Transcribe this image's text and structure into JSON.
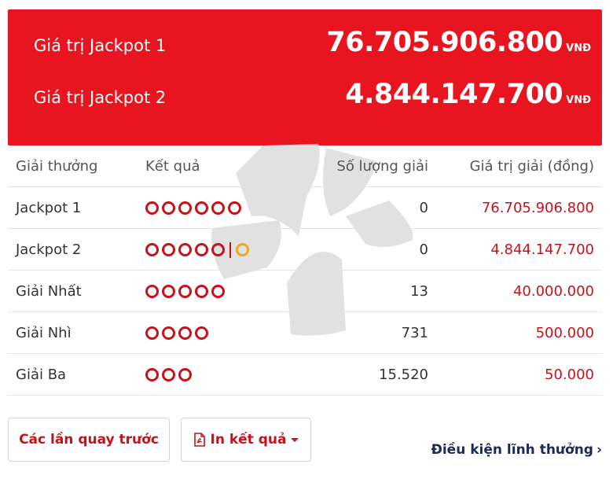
{
  "jackpots": [
    {
      "label": "Giá trị Jackpot 1",
      "amount": "76.705.906.800",
      "unit": "VNĐ"
    },
    {
      "label": "Giá trị Jackpot 2",
      "amount": "4.844.147.700",
      "unit": "VNĐ"
    }
  ],
  "table": {
    "headers": [
      "Giải thưởng",
      "Kết quả",
      "Số lượng giải",
      "Giá trị giải (đồng)"
    ],
    "rows": [
      {
        "name": "Jackpot 1",
        "balls": 6,
        "special_ball": false,
        "count": "0",
        "value": "76.705.906.800"
      },
      {
        "name": "Jackpot 2",
        "balls": 5,
        "special_ball": true,
        "count": "0",
        "value": "4.844.147.700"
      },
      {
        "name": "Giải Nhất",
        "balls": 5,
        "special_ball": false,
        "count": "13",
        "value": "40.000.000"
      },
      {
        "name": "Giải Nhì",
        "balls": 4,
        "special_ball": false,
        "count": "731",
        "value": "500.000"
      },
      {
        "name": "Giải Ba",
        "balls": 3,
        "special_ball": false,
        "count": "15.520",
        "value": "50.000"
      }
    ]
  },
  "actions": {
    "history_label": "Các lần quay trước",
    "print_label": "In kết quả",
    "conditions_label": "Điều kiện lĩnh thưởng"
  },
  "colors": {
    "banner": "#e8141f",
    "prize_red": "#c8111b",
    "special_ball": "#eda81b",
    "link": "#1c2a56"
  },
  "icons": {
    "print": "pdf-icon",
    "print_menu": "caret-down-icon",
    "link": "chevron-right-icon"
  }
}
